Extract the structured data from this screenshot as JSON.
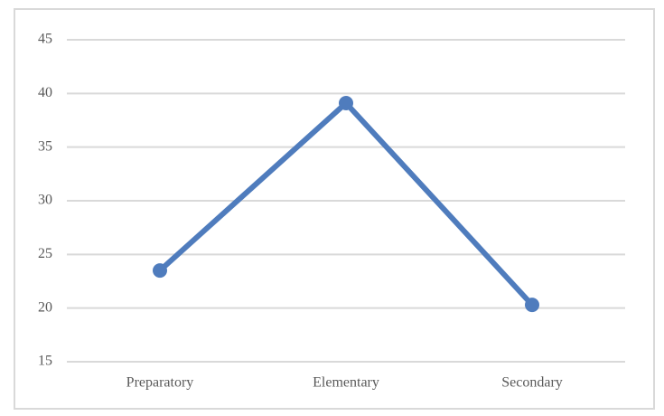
{
  "chart_data": {
    "type": "line",
    "categories": [
      "Preparatory",
      "Elementary",
      "Secondary"
    ],
    "series": [
      {
        "color": "#4f7cbd",
        "values": [
          23.5,
          39.1,
          20.3
        ]
      }
    ],
    "ylim": [
      15,
      45
    ],
    "yticks": [
      15,
      20,
      25,
      30,
      35,
      40,
      45
    ],
    "grid": true
  }
}
